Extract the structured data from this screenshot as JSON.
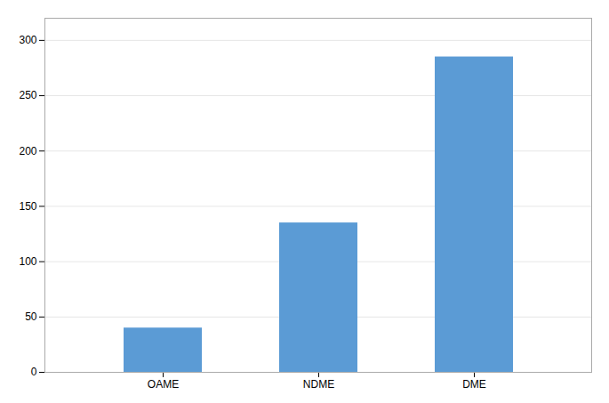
{
  "chart_data": {
    "type": "bar",
    "categories": [
      "OAME",
      "NDME",
      "DME"
    ],
    "values": [
      40,
      135,
      285
    ],
    "color": "#5b9bd5",
    "ylim": [
      0,
      320
    ],
    "yticks": [
      0,
      50,
      100,
      150,
      200,
      250,
      300
    ],
    "grid": true
  }
}
